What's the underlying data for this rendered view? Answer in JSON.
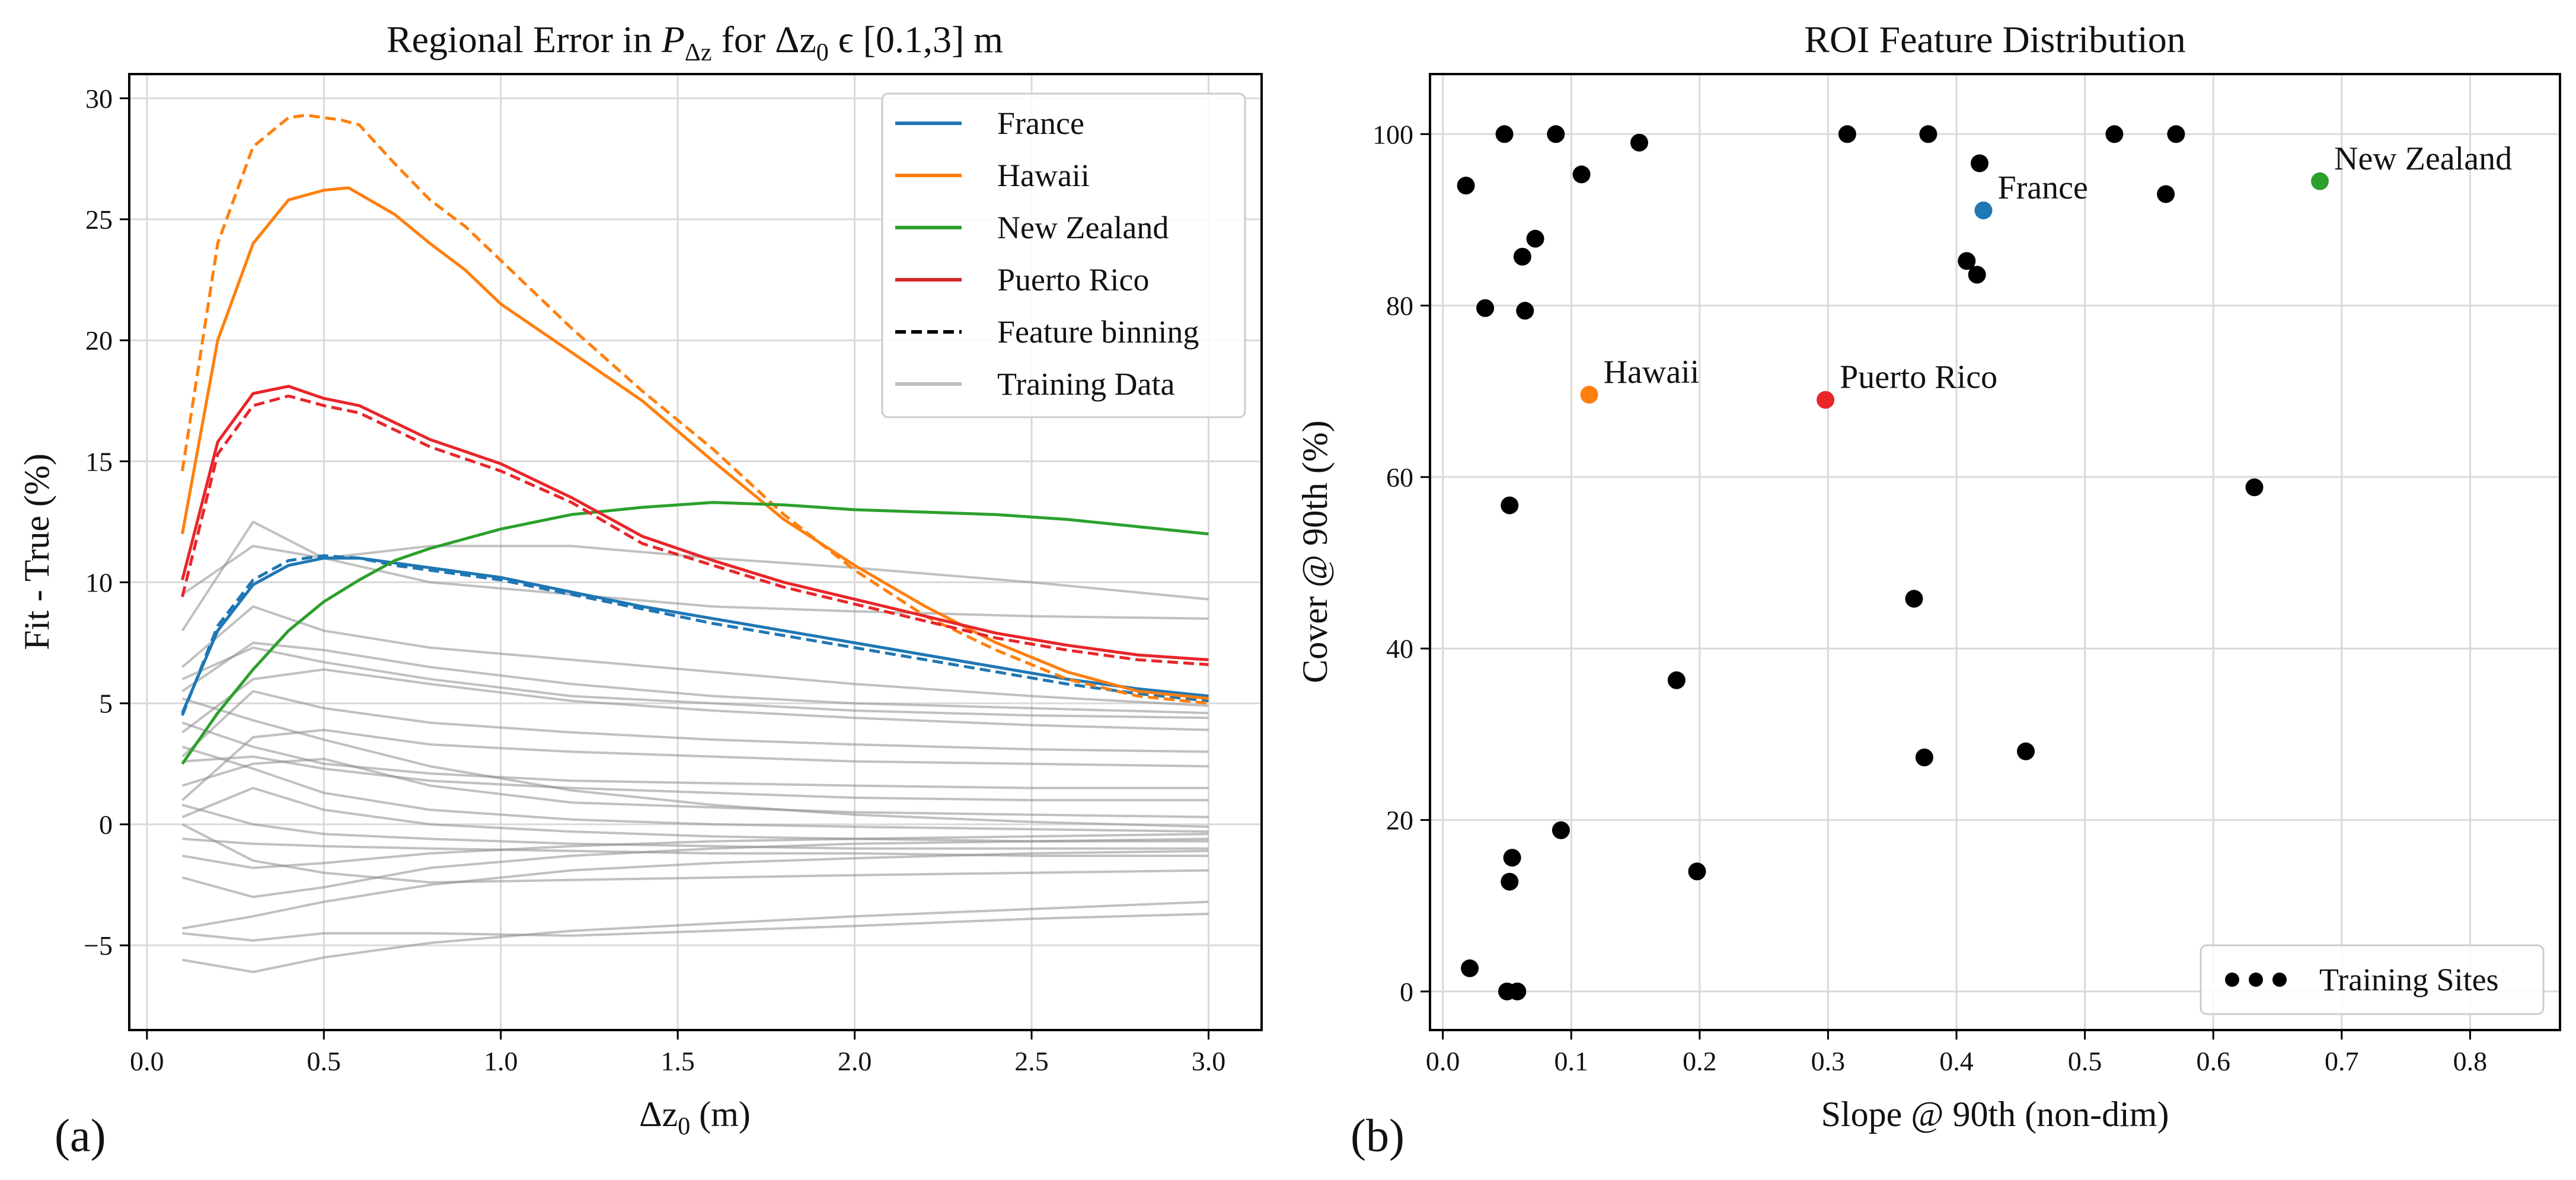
{
  "chart_data": [
    {
      "type": "line",
      "panel_label": "(a)",
      "title_prefix": "Regional Error in ",
      "title_symbol": "P",
      "title_subscript": "Δz",
      "title_middle": " for Δz",
      "title_middle_sub": "0",
      "title_suffix": " ϵ [0.1,3] m",
      "xlabel": "Δz",
      "xlabel_sub": "0",
      "xlabel_unit": " (m)",
      "ylabel": "Fit - True (%)",
      "xlim": [
        -0.05,
        3.15
      ],
      "ylim": [
        -8.5,
        31
      ],
      "xticks": [
        "0.0",
        "0.5",
        "1.0",
        "1.5",
        "2.0",
        "2.5",
        "3.0"
      ],
      "xtick_values": [
        0,
        0.5,
        1,
        1.5,
        2,
        2.5,
        3
      ],
      "yticks": [
        "−5",
        "0",
        "5",
        "10",
        "15",
        "20",
        "25",
        "30"
      ],
      "ytick_values": [
        -5,
        0,
        5,
        10,
        15,
        20,
        25,
        30
      ],
      "grid": true,
      "legend_position": "top-right",
      "legend": [
        {
          "label": "France",
          "color": "#1f77b4",
          "style": "solid"
        },
        {
          "label": "Hawaii",
          "color": "#ff7f0e",
          "style": "solid"
        },
        {
          "label": "New Zealand",
          "color": "#2ca02c",
          "style": "solid"
        },
        {
          "label": "Puerto Rico",
          "color": "#d62728",
          "style": "solid"
        },
        {
          "label": "Feature binning",
          "color": "#000000",
          "style": "dashed"
        },
        {
          "label": "Training Data",
          "color": "#bdbdbd",
          "style": "solid"
        }
      ],
      "series": [
        {
          "name": "France",
          "color": "#1f77b4",
          "dashed": false,
          "x": [
            0.1,
            0.2,
            0.3,
            0.4,
            0.5,
            0.6,
            0.7,
            0.8,
            0.9,
            1.0,
            1.2,
            1.4,
            1.6,
            1.8,
            2.0,
            2.2,
            2.4,
            2.6,
            2.8,
            3.0
          ],
          "y": [
            4.6,
            8.0,
            9.9,
            10.7,
            11.0,
            11.0,
            10.8,
            10.6,
            10.4,
            10.2,
            9.6,
            9.0,
            8.5,
            8.0,
            7.5,
            7.0,
            6.5,
            6.0,
            5.6,
            5.3
          ]
        },
        {
          "name": "France (binning)",
          "color": "#1f77b4",
          "dashed": true,
          "x": [
            0.1,
            0.2,
            0.3,
            0.4,
            0.5,
            0.6,
            0.7,
            0.8,
            0.9,
            1.0,
            1.2,
            1.4,
            1.6,
            1.8,
            2.0,
            2.2,
            2.4,
            2.6,
            2.8,
            3.0
          ],
          "y": [
            4.5,
            8.2,
            10.1,
            10.9,
            11.1,
            11.0,
            10.7,
            10.5,
            10.3,
            10.1,
            9.5,
            8.9,
            8.3,
            7.8,
            7.3,
            6.8,
            6.3,
            5.8,
            5.4,
            5.1
          ]
        },
        {
          "name": "Hawaii",
          "color": "#ff7f0e",
          "dashed": false,
          "x": [
            0.1,
            0.2,
            0.3,
            0.4,
            0.5,
            0.57,
            0.7,
            0.8,
            0.9,
            1.0,
            1.2,
            1.4,
            1.6,
            1.8,
            2.0,
            2.2,
            2.4,
            2.6,
            2.8,
            3.0
          ],
          "y": [
            12.0,
            20.0,
            24.0,
            25.8,
            26.2,
            26.3,
            25.2,
            24.0,
            22.9,
            21.5,
            19.5,
            17.5,
            15.0,
            12.6,
            10.7,
            9.0,
            7.5,
            6.3,
            5.5,
            5.2
          ]
        },
        {
          "name": "Hawaii (binning)",
          "color": "#ff7f0e",
          "dashed": true,
          "x": [
            0.1,
            0.2,
            0.3,
            0.4,
            0.45,
            0.55,
            0.6,
            0.7,
            0.8,
            0.9,
            1.0,
            1.2,
            1.4,
            1.6,
            1.8,
            2.0,
            2.2,
            2.4,
            2.6,
            2.8,
            3.0
          ],
          "y": [
            14.6,
            24.0,
            28.0,
            29.2,
            29.3,
            29.1,
            28.9,
            27.3,
            25.8,
            24.7,
            23.3,
            20.5,
            17.9,
            15.5,
            12.8,
            10.5,
            8.6,
            7.2,
            6.0,
            5.3,
            5.0
          ]
        },
        {
          "name": "New Zealand",
          "color": "#2ca02c",
          "dashed": false,
          "x": [
            0.1,
            0.2,
            0.3,
            0.4,
            0.5,
            0.6,
            0.7,
            0.8,
            0.9,
            1.0,
            1.2,
            1.4,
            1.6,
            1.8,
            2.0,
            2.2,
            2.4,
            2.6,
            2.8,
            3.0
          ],
          "y": [
            2.5,
            4.6,
            6.4,
            8.0,
            9.2,
            10.1,
            10.9,
            11.4,
            11.8,
            12.2,
            12.8,
            13.1,
            13.3,
            13.2,
            13.0,
            12.9,
            12.8,
            12.6,
            12.3,
            12.0
          ]
        },
        {
          "name": "Puerto Rico",
          "color": "#e8262a",
          "dashed": false,
          "x": [
            0.1,
            0.2,
            0.3,
            0.4,
            0.5,
            0.6,
            0.7,
            0.8,
            0.9,
            1.0,
            1.2,
            1.4,
            1.6,
            1.8,
            2.0,
            2.2,
            2.4,
            2.6,
            2.8,
            3.0
          ],
          "y": [
            10.1,
            15.8,
            17.8,
            18.1,
            17.6,
            17.3,
            16.6,
            15.9,
            15.4,
            14.9,
            13.5,
            11.9,
            10.9,
            10.0,
            9.3,
            8.6,
            7.9,
            7.4,
            7.0,
            6.8
          ]
        },
        {
          "name": "Puerto Rico (binning)",
          "color": "#e8262a",
          "dashed": true,
          "x": [
            0.1,
            0.2,
            0.3,
            0.4,
            0.5,
            0.6,
            0.7,
            0.8,
            0.9,
            1.0,
            1.2,
            1.4,
            1.6,
            1.8,
            2.0,
            2.2,
            2.4,
            2.6,
            2.8,
            3.0
          ],
          "y": [
            9.4,
            15.3,
            17.3,
            17.7,
            17.3,
            17.0,
            16.3,
            15.6,
            15.1,
            14.6,
            13.3,
            11.6,
            10.7,
            9.8,
            9.1,
            8.4,
            7.7,
            7.2,
            6.8,
            6.6
          ]
        }
      ],
      "training_x": [
        0.1,
        0.3,
        0.5,
        0.8,
        1.2,
        1.6,
        2.0,
        2.5,
        3.0
      ],
      "training_series": [
        [
          8.0,
          12.5,
          11.0,
          10.0,
          9.5,
          9.0,
          8.8,
          8.6,
          8.5
        ],
        [
          9.5,
          11.5,
          11.0,
          11.5,
          11.5,
          11.0,
          10.6,
          10.0,
          9.3
        ],
        [
          6.5,
          9.0,
          8.0,
          7.3,
          6.8,
          6.3,
          5.8,
          5.3,
          4.9
        ],
        [
          5.5,
          7.5,
          7.2,
          6.5,
          5.8,
          5.3,
          5.0,
          4.8,
          4.6
        ],
        [
          3.8,
          6.0,
          6.4,
          5.8,
          5.1,
          4.7,
          4.4,
          4.1,
          3.9
        ],
        [
          2.8,
          5.5,
          4.8,
          4.2,
          3.8,
          3.5,
          3.3,
          3.1,
          3.0
        ],
        [
          1.0,
          3.6,
          3.9,
          3.3,
          3.0,
          2.8,
          2.6,
          2.5,
          2.4
        ],
        [
          2.6,
          2.8,
          2.3,
          1.8,
          1.5,
          1.3,
          1.1,
          1.0,
          1.0
        ],
        [
          4.2,
          3.2,
          2.5,
          2.1,
          1.8,
          1.7,
          1.6,
          1.5,
          1.5
        ],
        [
          1.6,
          2.5,
          2.7,
          1.6,
          0.9,
          0.7,
          0.5,
          0.4,
          0.3
        ],
        [
          0.3,
          1.5,
          0.6,
          0.0,
          -0.3,
          -0.5,
          -0.6,
          -0.7,
          -0.7
        ],
        [
          0.8,
          0.0,
          -0.4,
          -0.6,
          -0.8,
          -0.9,
          -1.0,
          -1.0,
          -1.0
        ],
        [
          -0.6,
          -0.8,
          -0.9,
          -1.0,
          -1.1,
          -1.2,
          -1.2,
          -1.3,
          -1.3
        ],
        [
          -1.3,
          -1.8,
          -1.6,
          -1.2,
          -0.9,
          -0.7,
          -0.6,
          -0.5,
          -0.4
        ],
        [
          -2.2,
          -3.0,
          -2.6,
          -1.8,
          -1.3,
          -1.0,
          -0.8,
          -0.7,
          -0.6
        ],
        [
          -4.3,
          -3.8,
          -3.2,
          -2.5,
          -1.9,
          -1.6,
          -1.4,
          -1.2,
          -1.1
        ],
        [
          -5.6,
          -6.1,
          -5.5,
          -4.9,
          -4.4,
          -4.1,
          -3.8,
          -3.5,
          -3.2
        ],
        [
          -4.5,
          -4.8,
          -4.5,
          -4.5,
          -4.6,
          -4.4,
          -4.2,
          -3.9,
          -3.7
        ],
        [
          0.0,
          -1.5,
          -2.0,
          -2.4,
          -2.3,
          -2.2,
          -2.1,
          -2.0,
          -1.9
        ],
        [
          5.2,
          4.3,
          3.5,
          2.4,
          1.4,
          0.8,
          0.4,
          0.1,
          -0.1
        ],
        [
          3.2,
          2.3,
          1.3,
          0.6,
          0.2,
          0.0,
          -0.1,
          -0.2,
          -0.3
        ],
        [
          6.0,
          7.3,
          6.7,
          6.0,
          5.3,
          5.0,
          4.7,
          4.5,
          4.4
        ]
      ]
    },
    {
      "type": "scatter",
      "panel_label": "(b)",
      "title": "ROI Feature Distribution",
      "xlabel": "Slope @ 90th (non-dim)",
      "ylabel": "Cover @ 90th (%)",
      "xlim": [
        -0.01,
        0.87
      ],
      "ylim": [
        -4.5,
        107
      ],
      "xticks": [
        "0.0",
        "0.1",
        "0.2",
        "0.3",
        "0.4",
        "0.5",
        "0.6",
        "0.7",
        "0.8"
      ],
      "xtick_values": [
        0,
        0.1,
        0.2,
        0.3,
        0.4,
        0.5,
        0.6,
        0.7,
        0.8
      ],
      "yticks": [
        "0",
        "20",
        "40",
        "60",
        "80",
        "100"
      ],
      "ytick_values": [
        0,
        20,
        40,
        60,
        80,
        100
      ],
      "grid": true,
      "legend_position": "bottom-right",
      "legend_label": "Training Sites",
      "training_points": [
        [
          0.018,
          94.0
        ],
        [
          0.021,
          2.7
        ],
        [
          0.033,
          79.7
        ],
        [
          0.048,
          100.0
        ],
        [
          0.05,
          0.0
        ],
        [
          0.052,
          56.7
        ],
        [
          0.052,
          12.8
        ],
        [
          0.054,
          15.6
        ],
        [
          0.058,
          0.0
        ],
        [
          0.062,
          85.7
        ],
        [
          0.064,
          79.4
        ],
        [
          0.072,
          87.8
        ],
        [
          0.088,
          100.0
        ],
        [
          0.092,
          18.8
        ],
        [
          0.108,
          95.3
        ],
        [
          0.153,
          99.0
        ],
        [
          0.182,
          36.3
        ],
        [
          0.198,
          14.0
        ],
        [
          0.315,
          100.0
        ],
        [
          0.367,
          45.8
        ],
        [
          0.375,
          27.3
        ],
        [
          0.378,
          100.0
        ],
        [
          0.408,
          85.2
        ],
        [
          0.416,
          83.6
        ],
        [
          0.418,
          96.6
        ],
        [
          0.454,
          28.0
        ],
        [
          0.523,
          100.0
        ],
        [
          0.563,
          93.0
        ],
        [
          0.571,
          100.0
        ],
        [
          0.632,
          58.8
        ]
      ],
      "highlighted": [
        {
          "name": "France",
          "x": 0.421,
          "y": 91.1,
          "color": "#1f77b4"
        },
        {
          "name": "Hawaii",
          "x": 0.114,
          "y": 69.6,
          "color": "#ff7f0e"
        },
        {
          "name": "Puerto Rico",
          "x": 0.298,
          "y": 69.0,
          "color": "#e8262a"
        },
        {
          "name": "New Zealand",
          "x": 0.683,
          "y": 94.5,
          "color": "#2ca02c"
        }
      ]
    }
  ]
}
